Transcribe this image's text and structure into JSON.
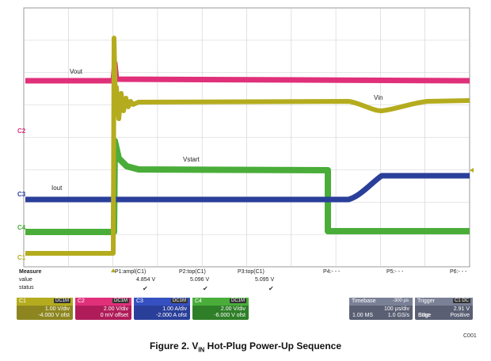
{
  "channels": [
    {
      "id": "C1",
      "name": "C1",
      "color": "#b4ac1e"
    },
    {
      "id": "C2",
      "name": "C2",
      "color": "#e0307a"
    },
    {
      "id": "C3",
      "name": "C3",
      "color": "#2a3f9a"
    },
    {
      "id": "C4",
      "name": "C4",
      "color": "#4aad3a"
    }
  ],
  "traces": {
    "vout": "Vout",
    "vin": "Vin",
    "vstart": "Vstart",
    "iout": "Iout"
  },
  "measure": {
    "header": "Measure",
    "value_label": "value",
    "status_label": "status",
    "columns": [
      {
        "name": "P1:ampl(C1)",
        "value": "4.854 V",
        "status": "✔"
      },
      {
        "name": "P2:top(C1)",
        "value": "5.096 V",
        "status": "✔"
      },
      {
        "name": "P3:top(C1)",
        "value": "5.095 V",
        "status": "✔"
      },
      {
        "name": "P4:- - -",
        "value": "",
        "status": ""
      },
      {
        "name": "P5:- - -",
        "value": "",
        "status": ""
      },
      {
        "name": "P6:- - -",
        "value": "",
        "status": ""
      }
    ]
  },
  "channel_boxes": [
    {
      "tag": "C1",
      "badge": "DC1M",
      "line1": "1.00 V/div",
      "line2": "-4.000 V ofst",
      "color": "#8d8620",
      "hdr": "#b4ac1e"
    },
    {
      "tag": "C2",
      "badge": "DC1M",
      "line1": "2.00 V/div",
      "line2": "0 mV offset",
      "color": "#b01c5a",
      "hdr": "#e0307a"
    },
    {
      "tag": "C3",
      "badge": "DC1M",
      "line1": "1.00 A/div",
      "line2": "-2.000 A ofst",
      "color": "#2a3f9a",
      "hdr": "#3550c0"
    },
    {
      "tag": "C4",
      "badge": "DC1M",
      "line1": "2.00 V/div",
      "line2": "-6.000 V ofst",
      "color": "#2f7f28",
      "hdr": "#4aad3a"
    }
  ],
  "timebase": {
    "label": "Timebase",
    "delay": "-300 µs",
    "div": "100 µs/div",
    "samples": "1.00 MS",
    "rate": "1.0 GS/s"
  },
  "trigger": {
    "label": "Trigger",
    "badge": "C1 DC",
    "level": "2.91 V",
    "mode": "Stop",
    "type": "Edge",
    "slope": "Positive"
  },
  "caption": {
    "prefix": "Figure 2. V",
    "sub": "IN",
    "suffix": " Hot-Plug Power-Up Sequence"
  },
  "code": "C001"
}
